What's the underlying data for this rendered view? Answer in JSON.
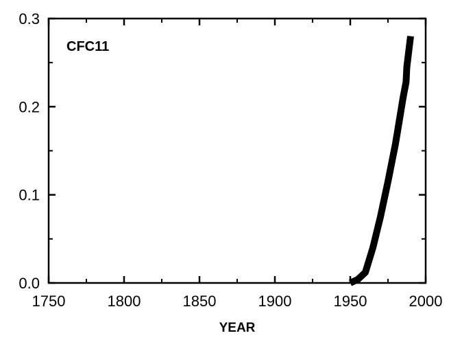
{
  "chart_data": {
    "type": "line",
    "title": "",
    "panel_label": "CFC11",
    "xlabel": "YEAR",
    "ylabel": "",
    "xlim": [
      1750,
      2000
    ],
    "ylim": [
      0.0,
      0.3
    ],
    "xticks": [
      1750,
      1800,
      1850,
      1900,
      1950,
      2000
    ],
    "xtick_labels": [
      "1750",
      "1800",
      "1850",
      "1900",
      "1950",
      "2000"
    ],
    "xminor": [
      1775,
      1825,
      1875,
      1925,
      1975
    ],
    "yticks": [
      0.0,
      0.1,
      0.2,
      0.3
    ],
    "ytick_labels": [
      "0.0",
      "0.1",
      "0.2",
      "0.3"
    ],
    "yminor": [
      0.05,
      0.15,
      0.25
    ],
    "grid": false,
    "legend": "none",
    "series": [
      {
        "x": [
          1950,
          1955,
          1960,
          1965,
          1970,
          1975,
          1980,
          1985,
          1987,
          1987.5,
          1990
        ],
        "y": [
          0.0,
          0.004,
          0.012,
          0.04,
          0.075,
          0.115,
          0.158,
          0.21,
          0.228,
          0.245,
          0.28
        ],
        "color": "#000000"
      }
    ]
  }
}
